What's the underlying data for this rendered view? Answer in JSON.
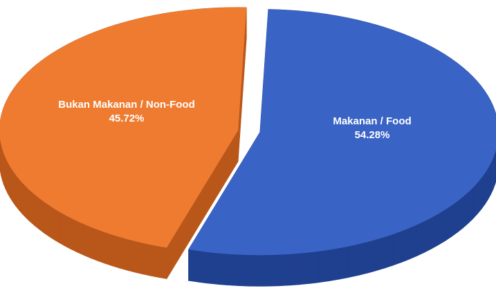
{
  "chart_data": {
    "type": "pie",
    "categories": [
      "Makanan / Food",
      "Bukan Makanan / Non-Food"
    ],
    "values": [
      54.28,
      45.72
    ],
    "value_labels": [
      "54.28%",
      "45.72%"
    ],
    "colors": [
      "#3a63c6",
      "#ee7b30"
    ],
    "side_colors": [
      "#1f3f8f",
      "#b9561a"
    ],
    "start_angle": -88,
    "exploded": true
  }
}
